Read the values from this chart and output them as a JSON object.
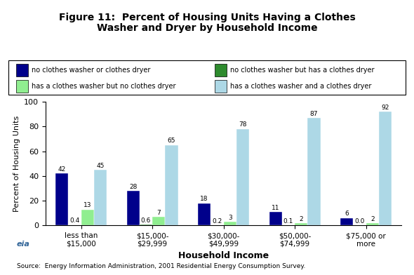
{
  "title_line1": "Figure 11:  Percent of Housing Units Having a Clothes",
  "title_line2": "Washer and Dryer by Household Income",
  "xlabel": "Household Income",
  "ylabel": "Percent of Housing Units",
  "source": "Source:  Energy Information Administration, 2001 Residential Energy Consumption Survey.",
  "categories": [
    "less than\n$15,000",
    "$15,000-\n$29,999",
    "$30,000-\n$49,999",
    "$50,000-\n$74,999",
    "$75,000 or\nmore"
  ],
  "series": [
    {
      "label": "no clothes washer or clothes dryer",
      "color": "#00008B",
      "values": [
        42,
        28,
        18,
        11,
        6
      ]
    },
    {
      "label": "no clothes washer but has a clothes dryer",
      "color": "#2E8B2E",
      "values": [
        0.4,
        0.6,
        0.2,
        0.1,
        0.0
      ]
    },
    {
      "label": "has a clothes washer but no clothes dryer",
      "color": "#90EE90",
      "values": [
        13,
        7,
        3,
        2,
        2
      ]
    },
    {
      "label": "has a clothes washer and a clothes dryer",
      "color": "#ADD8E6",
      "values": [
        45,
        65,
        78,
        87,
        92
      ]
    }
  ],
  "ylim": [
    0,
    100
  ],
  "yticks": [
    0,
    20,
    40,
    60,
    80,
    100
  ],
  "bar_width": 0.18,
  "legend_order": [
    0,
    1,
    2,
    3
  ],
  "legend_ncol": 2
}
